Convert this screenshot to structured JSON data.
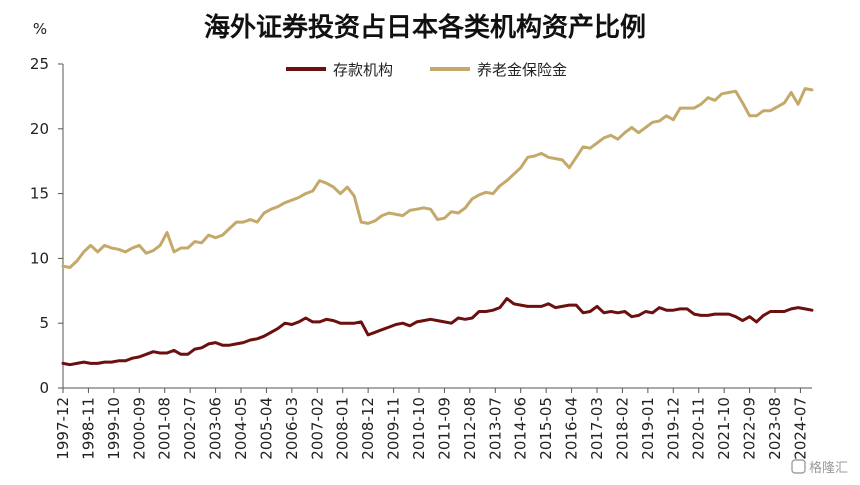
{
  "chart_data": {
    "type": "line",
    "title": "海外证券投资占日本各类机构资产比例",
    "unit": "%",
    "ylim": [
      0,
      25
    ],
    "y_ticks": [
      0,
      5,
      10,
      15,
      20,
      25
    ],
    "legend_position": "top-center",
    "grid": false,
    "x_tick_labels": [
      "1997-12",
      "1998-11",
      "1999-10",
      "2000-09",
      "2001-08",
      "2002-07",
      "2003-06",
      "2004-05",
      "2005-04",
      "2006-03",
      "2007-02",
      "2008-01",
      "2008-12",
      "2009-11",
      "2010-10",
      "2011-09",
      "2012-08",
      "2013-07",
      "2014-06",
      "2015-05",
      "2016-04",
      "2017-03",
      "2018-02",
      "2019-01",
      "2019-12",
      "2020-11",
      "2021-10",
      "2022-09",
      "2023-08",
      "2024-07"
    ],
    "x": [
      "1997-12",
      "1998-03",
      "1998-06",
      "1998-09",
      "1998-12",
      "1999-03",
      "1999-06",
      "1999-09",
      "1999-12",
      "2000-03",
      "2000-06",
      "2000-09",
      "2000-12",
      "2001-03",
      "2001-06",
      "2001-09",
      "2001-12",
      "2002-03",
      "2002-06",
      "2002-09",
      "2002-12",
      "2003-03",
      "2003-06",
      "2003-09",
      "2003-12",
      "2004-03",
      "2004-06",
      "2004-09",
      "2004-12",
      "2005-03",
      "2005-06",
      "2005-09",
      "2005-12",
      "2006-03",
      "2006-06",
      "2006-09",
      "2006-12",
      "2007-03",
      "2007-06",
      "2007-09",
      "2007-12",
      "2008-03",
      "2008-06",
      "2008-09",
      "2008-12",
      "2009-03",
      "2009-06",
      "2009-09",
      "2009-12",
      "2010-03",
      "2010-06",
      "2010-09",
      "2010-12",
      "2011-03",
      "2011-06",
      "2011-09",
      "2011-12",
      "2012-03",
      "2012-06",
      "2012-09",
      "2012-12",
      "2013-03",
      "2013-06",
      "2013-09",
      "2013-12",
      "2014-03",
      "2014-06",
      "2014-09",
      "2014-12",
      "2015-03",
      "2015-06",
      "2015-09",
      "2015-12",
      "2016-03",
      "2016-06",
      "2016-09",
      "2016-12",
      "2017-03",
      "2017-06",
      "2017-09",
      "2017-12",
      "2018-03",
      "2018-06",
      "2018-09",
      "2018-12",
      "2019-03",
      "2019-06",
      "2019-09",
      "2019-12",
      "2020-03",
      "2020-06",
      "2020-09",
      "2020-12",
      "2021-03",
      "2021-06",
      "2021-09",
      "2021-12",
      "2022-03",
      "2022-06",
      "2022-09",
      "2022-12",
      "2023-03",
      "2023-06",
      "2023-09",
      "2023-12",
      "2024-03",
      "2024-06",
      "2024-09",
      "2024-12"
    ],
    "series": [
      {
        "name": "存款机构",
        "color": "#6b0f0f",
        "values": [
          1.9,
          1.8,
          1.9,
          2.0,
          1.9,
          1.9,
          2.0,
          2.0,
          2.1,
          2.1,
          2.3,
          2.4,
          2.6,
          2.8,
          2.7,
          2.7,
          2.9,
          2.6,
          2.6,
          3.0,
          3.1,
          3.4,
          3.5,
          3.3,
          3.3,
          3.4,
          3.5,
          3.7,
          3.8,
          4.0,
          4.3,
          4.6,
          5.0,
          4.9,
          5.1,
          5.4,
          5.1,
          5.1,
          5.3,
          5.2,
          5.0,
          5.0,
          5.0,
          5.1,
          4.1,
          4.3,
          4.5,
          4.7,
          4.9,
          5.0,
          4.8,
          5.1,
          5.2,
          5.3,
          5.2,
          5.1,
          5.0,
          5.4,
          5.3,
          5.4,
          5.9,
          5.9,
          6.0,
          6.2,
          6.9,
          6.5,
          6.4,
          6.3,
          6.3,
          6.3,
          6.5,
          6.2,
          6.3,
          6.4,
          6.4,
          5.8,
          5.9,
          6.3,
          5.8,
          5.9,
          5.8,
          5.9,
          5.5,
          5.6,
          5.9,
          5.8,
          6.2,
          6.0,
          6.0,
          6.1,
          6.1,
          5.7,
          5.6,
          5.6,
          5.7,
          5.7,
          5.7,
          5.5,
          5.2,
          5.5,
          5.1,
          5.6,
          5.9,
          5.9,
          5.9,
          6.1,
          6.2,
          6.1,
          6.0
        ]
      },
      {
        "name": "养老金保险金",
        "color": "#c4a96a",
        "values": [
          9.4,
          9.3,
          9.8,
          10.5,
          11.0,
          10.5,
          11.0,
          10.8,
          10.7,
          10.5,
          10.8,
          11.0,
          10.4,
          10.6,
          11.0,
          12.0,
          10.5,
          10.8,
          10.8,
          11.3,
          11.2,
          11.8,
          11.6,
          11.8,
          12.3,
          12.8,
          12.8,
          13.0,
          12.8,
          13.5,
          13.8,
          14.0,
          14.3,
          14.5,
          14.7,
          15.0,
          15.2,
          16.0,
          15.8,
          15.5,
          15.0,
          15.5,
          14.8,
          12.8,
          12.7,
          12.9,
          13.3,
          13.5,
          13.4,
          13.3,
          13.7,
          13.8,
          13.9,
          13.8,
          13.0,
          13.1,
          13.6,
          13.5,
          13.9,
          14.6,
          14.9,
          15.1,
          15.0,
          15.6,
          16.0,
          16.5,
          17.0,
          17.8,
          17.9,
          18.1,
          17.8,
          17.7,
          17.6,
          17.0,
          17.8,
          18.6,
          18.5,
          18.9,
          19.3,
          19.5,
          19.2,
          19.7,
          20.1,
          19.7,
          20.1,
          20.5,
          20.6,
          21.0,
          20.7,
          21.6,
          21.6,
          21.6,
          21.9,
          22.4,
          22.2,
          22.7,
          22.8,
          22.9,
          22.0,
          21.0,
          21.0,
          21.4,
          21.4,
          21.7,
          22.0,
          22.8,
          21.9,
          23.1,
          23.0
        ]
      }
    ]
  },
  "watermark": "格隆汇"
}
